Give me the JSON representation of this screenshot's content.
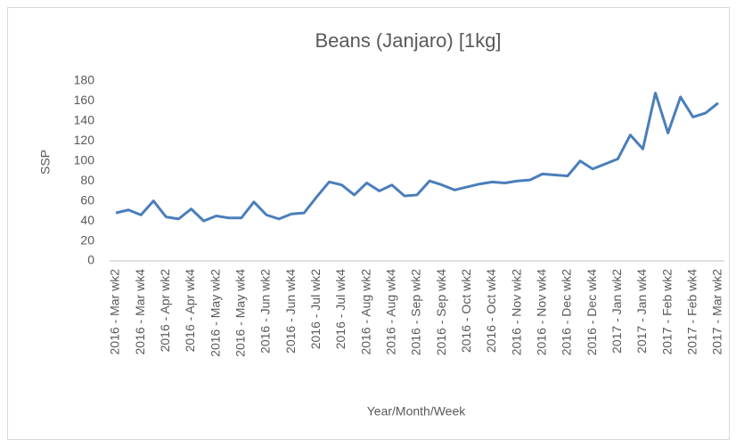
{
  "chart_data": {
    "type": "line",
    "title": "Beans (Janjaro) [1kg]",
    "x_label": "Year/Month/Week",
    "y_label": "SSP",
    "categories": [
      "2016 - Mar wk2",
      null,
      "2016 - Mar wk4",
      null,
      "2016 - Apr wk2",
      null,
      "2016 - Apr wk4",
      null,
      "2016 - May wk2",
      null,
      "2016 - May wk4",
      null,
      "2016 - Jun wk2",
      null,
      "2016 - Jun wk4",
      null,
      "2016 - Jul wk2",
      null,
      "2016 - Jul wk4",
      null,
      "2016 - Aug wk2",
      null,
      "2016 - Aug wk4",
      null,
      "2016 - Sep wk2",
      null,
      "2016 - Sep wk4",
      null,
      "2016 - Oct wk2",
      null,
      "2016 - Oct wk4",
      null,
      "2016 - Nov wk2",
      null,
      "2016 - Nov wk4",
      null,
      "2016 - Dec wk2",
      null,
      "2016 - Dec wk4",
      null,
      "2017 - Jan wk2",
      null,
      "2017 - Jan wk4",
      null,
      "2017 - Feb wk2",
      null,
      "2017 - Feb wk4",
      null,
      "2017 - Mar wk2"
    ],
    "values": [
      48,
      51,
      46,
      60,
      44,
      42,
      52,
      40,
      45,
      43,
      43,
      59,
      46,
      42,
      47,
      48,
      64,
      79,
      76,
      66,
      78,
      70,
      76,
      65,
      66,
      80,
      76,
      71,
      74,
      77,
      79,
      78,
      80,
      81,
      87,
      86,
      85,
      100,
      92,
      97,
      102,
      126,
      112,
      168,
      128,
      164,
      144,
      148,
      158
    ],
    "color": "#4a7ebb",
    "ylim": [
      0,
      180
    ],
    "yticks": [
      0,
      20,
      40,
      60,
      80,
      100,
      120,
      140,
      160,
      180
    ],
    "grid": false
  }
}
